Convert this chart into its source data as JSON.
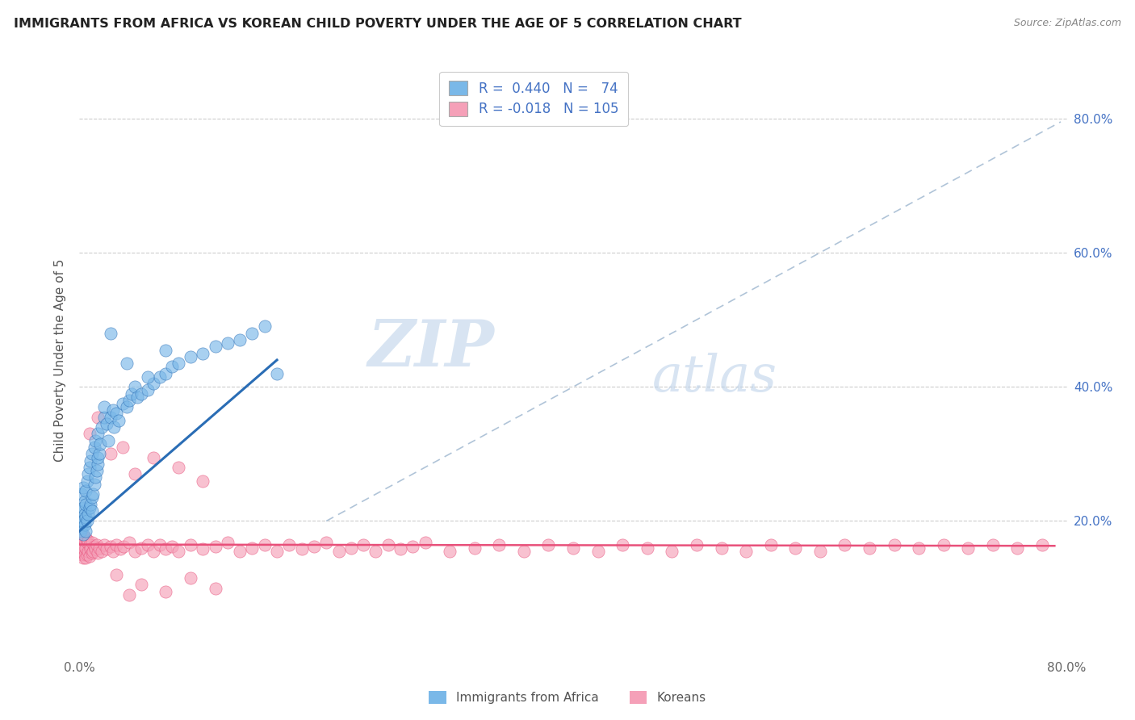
{
  "title": "IMMIGRANTS FROM AFRICA VS KOREAN CHILD POVERTY UNDER THE AGE OF 5 CORRELATION CHART",
  "source": "Source: ZipAtlas.com",
  "ylabel": "Child Poverty Under the Age of 5",
  "watermark_zip": "ZIP",
  "watermark_atlas": "atlas",
  "ytick_values": [
    0.2,
    0.4,
    0.6,
    0.8
  ],
  "ytick_labels": [
    "20.0%",
    "40.0%",
    "60.0%",
    "80.0%"
  ],
  "xlim": [
    0.0,
    0.8
  ],
  "ylim": [
    0.0,
    0.88
  ],
  "color_blue": "#7ab8e8",
  "color_pink": "#f5a0b8",
  "color_blue_line": "#2a6db5",
  "color_pink_line": "#e8507a",
  "color_dashed": "#b0c4d8",
  "blue_r": 0.44,
  "blue_n": 74,
  "pink_r": -0.018,
  "pink_n": 105,
  "blue_line_x0": 0.0,
  "blue_line_y0": 0.185,
  "blue_line_x1": 0.16,
  "blue_line_y1": 0.44,
  "pink_line_x0": 0.0,
  "pink_line_y0": 0.165,
  "pink_line_x1": 0.79,
  "pink_line_y1": 0.163,
  "dash_line_x0": 0.2,
  "dash_line_y0": 0.2,
  "dash_line_x1": 0.795,
  "dash_line_y1": 0.795,
  "blue_x": [
    0.001,
    0.001,
    0.002,
    0.002,
    0.002,
    0.002,
    0.003,
    0.003,
    0.003,
    0.003,
    0.004,
    0.004,
    0.004,
    0.005,
    0.005,
    0.005,
    0.005,
    0.006,
    0.006,
    0.007,
    0.007,
    0.008,
    0.008,
    0.009,
    0.009,
    0.01,
    0.01,
    0.01,
    0.011,
    0.012,
    0.012,
    0.013,
    0.013,
    0.014,
    0.015,
    0.015,
    0.015,
    0.016,
    0.017,
    0.018,
    0.02,
    0.02,
    0.022,
    0.023,
    0.025,
    0.027,
    0.028,
    0.03,
    0.032,
    0.035,
    0.038,
    0.04,
    0.042,
    0.045,
    0.047,
    0.05,
    0.055,
    0.06,
    0.065,
    0.07,
    0.075,
    0.08,
    0.09,
    0.1,
    0.11,
    0.12,
    0.13,
    0.14,
    0.15,
    0.038,
    0.025,
    0.055,
    0.07,
    0.16
  ],
  "blue_y": [
    0.185,
    0.195,
    0.19,
    0.2,
    0.215,
    0.24,
    0.18,
    0.2,
    0.22,
    0.25,
    0.195,
    0.21,
    0.23,
    0.185,
    0.205,
    0.225,
    0.245,
    0.2,
    0.26,
    0.21,
    0.27,
    0.22,
    0.28,
    0.225,
    0.29,
    0.215,
    0.235,
    0.3,
    0.24,
    0.255,
    0.31,
    0.265,
    0.32,
    0.275,
    0.285,
    0.33,
    0.295,
    0.3,
    0.315,
    0.34,
    0.355,
    0.37,
    0.345,
    0.32,
    0.355,
    0.365,
    0.34,
    0.36,
    0.35,
    0.375,
    0.37,
    0.38,
    0.39,
    0.4,
    0.385,
    0.39,
    0.395,
    0.405,
    0.415,
    0.42,
    0.43,
    0.435,
    0.445,
    0.45,
    0.46,
    0.465,
    0.47,
    0.48,
    0.49,
    0.435,
    0.48,
    0.415,
    0.455,
    0.42
  ],
  "pink_x": [
    0.001,
    0.001,
    0.001,
    0.002,
    0.002,
    0.002,
    0.003,
    0.003,
    0.003,
    0.004,
    0.004,
    0.005,
    0.005,
    0.005,
    0.006,
    0.006,
    0.007,
    0.007,
    0.008,
    0.008,
    0.009,
    0.01,
    0.01,
    0.011,
    0.012,
    0.013,
    0.014,
    0.015,
    0.016,
    0.018,
    0.02,
    0.022,
    0.025,
    0.027,
    0.03,
    0.033,
    0.036,
    0.04,
    0.045,
    0.05,
    0.055,
    0.06,
    0.065,
    0.07,
    0.075,
    0.08,
    0.09,
    0.1,
    0.11,
    0.12,
    0.13,
    0.14,
    0.15,
    0.16,
    0.17,
    0.18,
    0.19,
    0.2,
    0.21,
    0.22,
    0.23,
    0.24,
    0.25,
    0.26,
    0.27,
    0.28,
    0.3,
    0.32,
    0.34,
    0.36,
    0.38,
    0.4,
    0.42,
    0.44,
    0.46,
    0.48,
    0.5,
    0.52,
    0.54,
    0.56,
    0.58,
    0.6,
    0.62,
    0.64,
    0.66,
    0.68,
    0.7,
    0.72,
    0.74,
    0.76,
    0.78,
    0.008,
    0.015,
    0.025,
    0.035,
    0.045,
    0.06,
    0.08,
    0.1,
    0.03,
    0.04,
    0.05,
    0.07,
    0.09,
    0.11
  ],
  "pink_y": [
    0.155,
    0.165,
    0.175,
    0.15,
    0.165,
    0.18,
    0.145,
    0.16,
    0.175,
    0.15,
    0.17,
    0.145,
    0.16,
    0.175,
    0.15,
    0.168,
    0.155,
    0.17,
    0.148,
    0.165,
    0.158,
    0.152,
    0.168,
    0.155,
    0.162,
    0.158,
    0.165,
    0.152,
    0.16,
    0.155,
    0.165,
    0.158,
    0.162,
    0.155,
    0.165,
    0.158,
    0.162,
    0.168,
    0.155,
    0.16,
    0.165,
    0.155,
    0.165,
    0.158,
    0.162,
    0.155,
    0.165,
    0.158,
    0.162,
    0.168,
    0.155,
    0.16,
    0.165,
    0.155,
    0.165,
    0.158,
    0.162,
    0.168,
    0.155,
    0.16,
    0.165,
    0.155,
    0.165,
    0.158,
    0.162,
    0.168,
    0.155,
    0.16,
    0.165,
    0.155,
    0.165,
    0.16,
    0.155,
    0.165,
    0.16,
    0.155,
    0.165,
    0.16,
    0.155,
    0.165,
    0.16,
    0.155,
    0.165,
    0.16,
    0.165,
    0.16,
    0.165,
    0.16,
    0.165,
    0.16,
    0.165,
    0.33,
    0.355,
    0.3,
    0.31,
    0.27,
    0.295,
    0.28,
    0.26,
    0.12,
    0.09,
    0.105,
    0.095,
    0.115,
    0.1
  ]
}
